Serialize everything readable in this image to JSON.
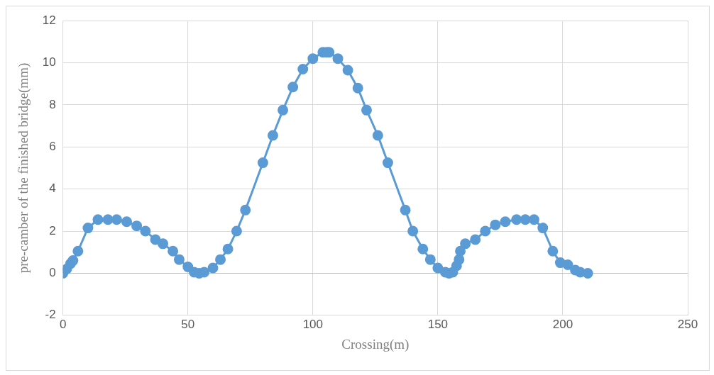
{
  "chart_data": {
    "type": "line",
    "xlabel": "Crossing(m)",
    "ylabel": "pre-camber of the finished bridge(mm)",
    "x": [
      0,
      1.5,
      3,
      4,
      6,
      10,
      14,
      18,
      21.5,
      25.5,
      29.5,
      33,
      37,
      40,
      44,
      46.5,
      50,
      52.5,
      54.5,
      56.5,
      60,
      63,
      66,
      69.5,
      73,
      80,
      84,
      88,
      92,
      96,
      100,
      104,
      105.5,
      106.5,
      110,
      114,
      118,
      121.5,
      126,
      130,
      137,
      140,
      144,
      147,
      150,
      153,
      154.5,
      156,
      157.5,
      158.5,
      159,
      161,
      165,
      169,
      173,
      177,
      181.5,
      185,
      188.5,
      192,
      196,
      199,
      202,
      205,
      207,
      210
    ],
    "series": [
      {
        "color": "#5b9bd5",
        "values": [
          0,
          0.2,
          0.45,
          0.6,
          1.05,
          2.15,
          2.55,
          2.55,
          2.55,
          2.45,
          2.25,
          2.0,
          1.6,
          1.4,
          1.05,
          0.65,
          0.3,
          0.05,
          0,
          0.05,
          0.25,
          0.65,
          1.15,
          2.0,
          3.0,
          5.25,
          6.55,
          7.75,
          8.85,
          9.7,
          10.2,
          10.5,
          10.5,
          10.5,
          10.2,
          9.65,
          8.8,
          7.75,
          6.55,
          5.25,
          3.0,
          2.0,
          1.15,
          0.65,
          0.25,
          0.05,
          0,
          0.05,
          0.35,
          0.65,
          1.05,
          1.4,
          1.6,
          2.0,
          2.3,
          2.45,
          2.55,
          2.55,
          2.55,
          2.15,
          1.05,
          0.5,
          0.4,
          0.15,
          0.05,
          0
        ]
      }
    ],
    "xlim": [
      0,
      250
    ],
    "xticks": [
      0,
      50,
      100,
      150,
      200,
      250
    ],
    "ylim": [
      -2,
      12
    ],
    "yticks": [
      -2,
      0,
      2,
      4,
      6,
      8,
      10,
      12
    ],
    "grid": true,
    "legend": false,
    "marker": "circle",
    "line_style": "solid"
  }
}
